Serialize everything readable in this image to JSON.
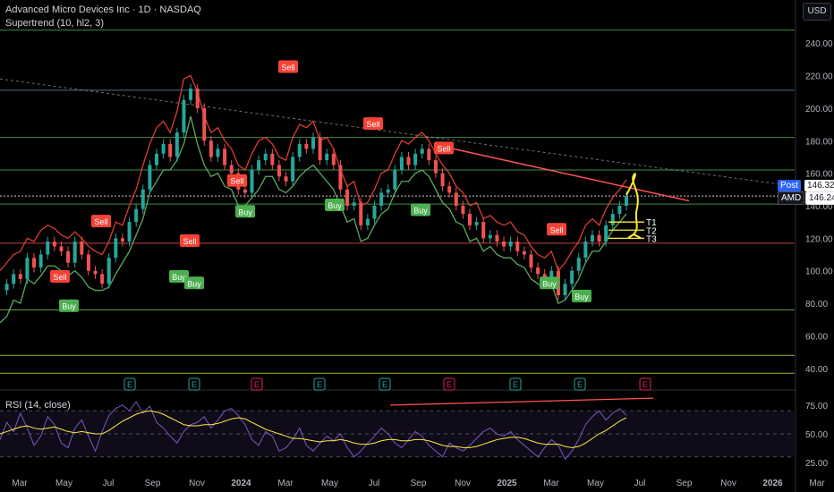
{
  "header": {
    "title": "Advanced Micro Devices Inc · 1D · NASDAQ",
    "indicator": "Supertrend (10, hl2, 3)",
    "rsi_label": "RSI (14, close)",
    "currency_button": "USD"
  },
  "price_tags": {
    "post_label": "Post",
    "post_value": "146.32",
    "symbol_label": "AMD",
    "symbol_value": "146.24"
  },
  "colors": {
    "background": "#000000",
    "up": "#26a69a",
    "down": "#ef5350",
    "supertrend_up": "#2e7d32",
    "supertrend_down": "#f44336",
    "rsi_line": "#7e57c2",
    "rsi_ma": "#ffeb3b",
    "annotation": "#ffeb3b",
    "trendline": "#ff5252"
  },
  "chart_data": [
    {
      "type": "line",
      "title": "Advanced Micro Devices Inc · 1D · NASDAQ",
      "x_ticks": [
        "Mar",
        "May",
        "Jul",
        "Sep",
        "Nov",
        "2024",
        "Mar",
        "May",
        "Jul",
        "Sep",
        "Nov",
        "2025",
        "Mar",
        "May",
        "Jul",
        "Sep",
        "Nov",
        "2026",
        "Mar"
      ],
      "y_ticks": [
        40,
        60,
        80,
        100,
        120,
        140,
        160,
        180,
        200,
        220,
        240
      ],
      "ylim": [
        30,
        250
      ],
      "grid": false,
      "series": [
        {
          "values": [
            88,
            92,
            98,
            95,
            108,
            102,
            110,
            118,
            115,
            112,
            105,
            118,
            110,
            100,
            98,
            92,
            108,
            120,
            118,
            130,
            138,
            150,
            165,
            172,
            178,
            170,
            185,
            205,
            212,
            200,
            180,
            170,
            175,
            165,
            160,
            150,
            148,
            162,
            168,
            172,
            165,
            158,
            155,
            170,
            178,
            175,
            182,
            168,
            172,
            165,
            150,
            140,
            142,
            128,
            132,
            140,
            148,
            150,
            162,
            170,
            165,
            172,
            175,
            168,
            160,
            152,
            148,
            140,
            135,
            128,
            130,
            120,
            122,
            118,
            115,
            118,
            112,
            110,
            102,
            98,
            96,
            100,
            85,
            92,
            100,
            108,
            118,
            122,
            118,
            128,
            135,
            140,
            146
          ]
        }
      ],
      "supertrend": {
        "up_values": [
          68,
          72,
          82,
          80,
          95,
          92,
          97,
          103,
          103,
          100,
          97,
          100,
          96,
          90,
          88,
          88,
          90,
          98,
          105,
          112,
          122,
          132,
          148,
          155,
          162,
          162,
          168,
          178,
          195,
          178,
          165,
          158,
          160,
          152,
          150,
          140,
          140,
          145,
          150,
          158,
          158,
          150,
          148,
          152,
          158,
          162,
          165,
          160,
          155,
          150,
          140,
          130,
          132,
          118,
          120,
          128,
          135,
          138,
          148,
          155,
          155,
          160,
          162,
          158,
          150,
          142,
          138,
          130,
          128,
          118,
          120,
          112,
          115,
          110,
          108,
          108,
          104,
          102,
          95,
          92,
          90,
          92,
          80,
          82,
          88,
          95,
          105,
          112,
          112,
          118,
          125,
          130,
          135
        ],
        "down_values": [
          100,
          105,
          110,
          112,
          120,
          118,
          125,
          128,
          126,
          122,
          120,
          124,
          120,
          115,
          112,
          110,
          118,
          130,
          128,
          140,
          150,
          165,
          178,
          188,
          192,
          185,
          198,
          218,
          220,
          210,
          195,
          185,
          188,
          180,
          175,
          165,
          162,
          172,
          180,
          182,
          178,
          170,
          168,
          182,
          190,
          188,
          192,
          180,
          182,
          175,
          162,
          152,
          155,
          140,
          142,
          150,
          160,
          162,
          172,
          180,
          178,
          182,
          185,
          180,
          172,
          165,
          160,
          152,
          148,
          140,
          142,
          132,
          134,
          130,
          128,
          130,
          124,
          122,
          115,
          110,
          108,
          112,
          100,
          105,
          112,
          118,
          128,
          132,
          128,
          138,
          145,
          150,
          156
        ]
      },
      "signals": [
        {
          "label": "Sell",
          "price": 96
        },
        {
          "label": "Buy",
          "price": 78
        },
        {
          "label": "Sell",
          "price": 130
        },
        {
          "label": "Buy",
          "price": 96
        },
        {
          "label": "Sell",
          "price": 118
        },
        {
          "label": "Buy",
          "price": 92
        },
        {
          "label": "Sell",
          "price": 155
        },
        {
          "label": "Buy",
          "price": 136
        },
        {
          "label": "Sell",
          "price": 225
        },
        {
          "label": "Sell",
          "price": 190
        },
        {
          "label": "Buy",
          "price": 140
        },
        {
          "label": "Buy",
          "price": 137
        },
        {
          "label": "Sell",
          "price": 175
        },
        {
          "label": "Buy",
          "price": 92
        },
        {
          "label": "Sell",
          "price": 125
        },
        {
          "label": "Buy",
          "price": 84
        }
      ],
      "horizontal_levels": [
        {
          "value": 211,
          "color": "#5b8fb9"
        },
        {
          "value": 182,
          "color": "#4caf50"
        },
        {
          "value": 162,
          "color": "#4caf50"
        },
        {
          "value": 141,
          "color": "#4caf50"
        },
        {
          "value": 117,
          "color": "#ef5350"
        },
        {
          "value": 76,
          "color": "#8bc34a"
        },
        {
          "value": 48,
          "color": "#cddc39"
        },
        {
          "value": 37,
          "color": "#cddc39"
        },
        {
          "value": 248,
          "color": "#4caf50"
        }
      ],
      "targets": [
        {
          "label": "T1",
          "value": 130
        },
        {
          "label": "T2",
          "value": 125
        },
        {
          "label": "T3",
          "value": 120
        }
      ],
      "earnings_markers": [
        "E",
        "E",
        "E",
        "E",
        "E",
        "E",
        "E",
        "E",
        "E"
      ]
    },
    {
      "type": "line",
      "title": "RSI (14, close)",
      "y_ticks": [
        25.0,
        50.0,
        75.0
      ],
      "ylim": [
        15,
        85
      ],
      "series": [
        {
          "values": [
            45,
            60,
            52,
            68,
            55,
            40,
            48,
            65,
            58,
            42,
            38,
            55,
            62,
            48,
            35,
            52,
            66,
            72,
            75,
            70,
            78,
            68,
            74,
            60,
            55,
            48,
            42,
            52,
            58,
            60,
            65,
            55,
            62,
            70,
            72,
            66,
            58,
            45,
            40,
            52,
            48,
            35,
            38,
            45,
            55,
            40,
            35,
            42,
            48,
            44,
            50,
            38,
            30,
            35,
            42,
            48,
            55,
            50,
            42,
            38,
            45,
            52,
            48,
            40,
            35,
            30,
            42,
            38,
            35,
            40,
            46,
            52,
            55,
            50,
            48,
            52,
            45,
            40,
            35,
            30,
            38,
            45,
            40,
            28,
            35,
            45,
            58,
            65,
            70,
            62,
            68,
            72,
            66
          ]
        },
        {
          "values": [
            50,
            52,
            54,
            56,
            57,
            55,
            54,
            55,
            56,
            54,
            52,
            51,
            52,
            51,
            50,
            50,
            53,
            57,
            61,
            64,
            67,
            69,
            70,
            69,
            67,
            64,
            61,
            58,
            57,
            57,
            58,
            58,
            59,
            61,
            63,
            64,
            63,
            60,
            57,
            54,
            52,
            50,
            48,
            46,
            46,
            45,
            44,
            43,
            44,
            44,
            45,
            44,
            42,
            41,
            41,
            42,
            44,
            45,
            45,
            44,
            44,
            45,
            45,
            44,
            42,
            40,
            39,
            39,
            38,
            38,
            39,
            41,
            43,
            45,
            46,
            47,
            47,
            46,
            44,
            42,
            41,
            41,
            41,
            39,
            38,
            39,
            42,
            46,
            50,
            53,
            57,
            61,
            64
          ]
        }
      ]
    }
  ]
}
